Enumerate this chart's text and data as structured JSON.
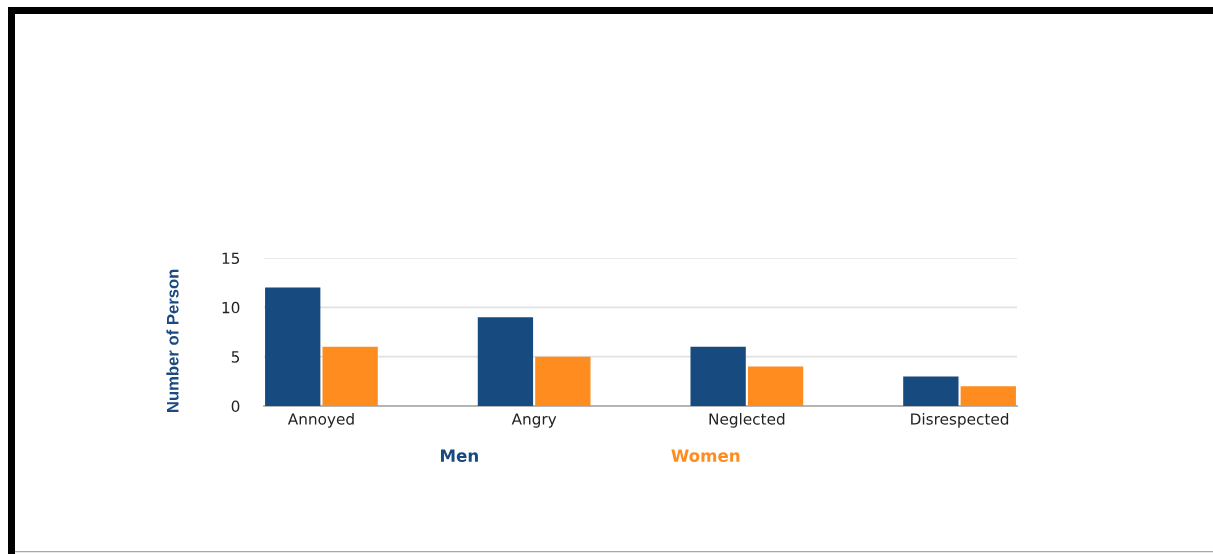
{
  "chart_data": {
    "type": "bar",
    "ylabel": "Number of Person",
    "categories": [
      "Annoyed",
      "Angry",
      "Neglected",
      "Disrespected"
    ],
    "series": [
      {
        "name": "Men",
        "color": "#174a7e",
        "values": [
          12,
          9,
          6,
          3
        ]
      },
      {
        "name": "Women",
        "color": "#ff8c1f",
        "values": [
          6,
          5,
          4,
          2
        ]
      }
    ],
    "ylim": [
      0,
      15
    ],
    "yticks": [
      0,
      5,
      10,
      15
    ],
    "grid": "y",
    "legend": "bottom"
  }
}
